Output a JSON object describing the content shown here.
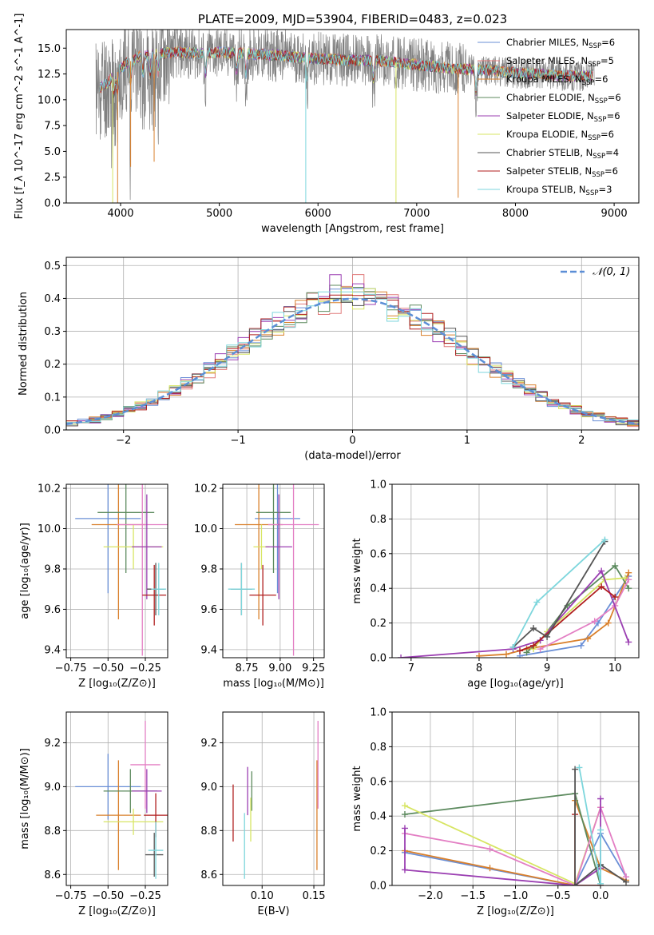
{
  "colors": {
    "Chabrier MILES": "#6a8fd6",
    "Salpeter MILES": "#e07b7b",
    "Kroupa MILES": "#d9802c",
    "Chabrier ELODIE": "#5c8a5e",
    "Salpeter ELODIE": "#9b3fb2",
    "Kroupa ELODIE": "#d7e563",
    "Chabrier STELIB": "#555555",
    "Salpeter STELIB": "#b01e1e",
    "Kroupa STELIB": "#7dd6dc",
    "pink": "#e37fc4",
    "normal": "#5b8ed6",
    "grid": "#b0b0b0"
  },
  "chart_data": [
    {
      "type": "line",
      "title": "PLATE=2009, MJD=53904, FIBERID=0483, z=0.023",
      "xlabel": "wavelength [Angstrom, rest frame]",
      "ylabel": "Flux [f_λ 10^-17 erg cm^-2 s^-1 A^-1]",
      "xlim": [
        3450,
        9250
      ],
      "ylim": [
        0,
        16.8
      ],
      "xticks": [
        4000,
        5000,
        6000,
        7000,
        8000,
        9000
      ],
      "yticks": [
        0.0,
        2.5,
        5.0,
        7.5,
        10.0,
        12.5,
        15.0
      ],
      "legend_position": "top-right",
      "grid": false,
      "data_range": [
        3750,
        8800
      ],
      "continuum": {
        "x": [
          3750,
          3850,
          3950,
          4050,
          4200,
          4400,
          4600,
          4800,
          5000,
          5200,
          5400,
          5600,
          5800,
          6000,
          6200,
          6400,
          6600,
          6800,
          7000,
          7200,
          7400,
          7600,
          7800,
          8000,
          8200,
          8400,
          8600,
          8800
        ],
        "y": [
          11.0,
          11.5,
          12.5,
          13.5,
          14.2,
          14.5,
          14.6,
          14.5,
          14.6,
          14.5,
          14.4,
          14.3,
          14.1,
          14.0,
          13.9,
          13.8,
          13.8,
          13.6,
          13.4,
          13.2,
          13.0,
          12.9,
          12.8,
          12.6,
          12.5,
          12.4,
          12.3,
          12.3
        ]
      },
      "drops": [
        {
          "x": 3920,
          "y": 0.0,
          "series": "Kroupa ELODIE"
        },
        {
          "x": 3970,
          "y": 0.0,
          "series": "Kroupa MILES"
        },
        {
          "x": 4102,
          "y": 3.5,
          "series": "Kroupa MILES"
        },
        {
          "x": 4340,
          "y": 4.0,
          "series": "Kroupa MILES"
        },
        {
          "x": 5876,
          "y": 0.0,
          "series": "Kroupa STELIB"
        },
        {
          "x": 6790,
          "y": 0.0,
          "series": "Kroupa ELODIE"
        },
        {
          "x": 7420,
          "y": 0.5,
          "series": "Kroupa MILES"
        }
      ],
      "series": [
        {
          "name": "Chabrier MILES, N_SSP=6"
        },
        {
          "name": "Salpeter MILES, N_SSP=5"
        },
        {
          "name": "Kroupa MILES, N_SSP=6"
        },
        {
          "name": "Chabrier ELODIE, N_SSP=6"
        },
        {
          "name": "Salpeter ELODIE, N_SSP=6"
        },
        {
          "name": "Kroupa ELODIE, N_SSP=6"
        },
        {
          "name": "Chabrier STELIB, N_SSP=4"
        },
        {
          "name": "Salpeter STELIB, N_SSP=6"
        },
        {
          "name": "Kroupa STELIB, N_SSP=3"
        }
      ]
    },
    {
      "type": "area",
      "xlabel": "(data-model)/error",
      "ylabel": "Normed distribution",
      "xlim": [
        -2.5,
        2.5
      ],
      "ylim": [
        0,
        0.525
      ],
      "xticks": [
        -2,
        -1,
        0,
        1,
        2
      ],
      "yticks": [
        0.0,
        0.1,
        0.2,
        0.3,
        0.4,
        0.5
      ],
      "grid": true,
      "legend": "N(0,1)",
      "legend_position": "top-right",
      "bin_width": 0.1,
      "bin_start": -2.5,
      "histograms": [
        {
          "series": "Chabrier MILES",
          "peak": 0.43,
          "seed": 1
        },
        {
          "series": "Salpeter MILES",
          "peak": 0.5,
          "seed": 2
        },
        {
          "series": "Kroupa MILES",
          "peak": 0.42,
          "seed": 3
        },
        {
          "series": "Chabrier ELODIE",
          "peak": 0.44,
          "seed": 4
        },
        {
          "series": "Salpeter ELODIE",
          "peak": 0.5,
          "seed": 5
        },
        {
          "series": "Kroupa ELODIE",
          "peak": 0.48,
          "seed": 6
        },
        {
          "series": "Chabrier STELIB",
          "peak": 0.4,
          "seed": 7
        },
        {
          "series": "Salpeter STELIB",
          "peak": 0.41,
          "seed": 8
        },
        {
          "series": "Kroupa STELIB",
          "peak": 0.42,
          "seed": 9
        }
      ]
    },
    {
      "type": "scatter",
      "xlabel": "Z [log10(Z/Z⊙)]",
      "ylabel": "age  [log10(age/yr)]",
      "xlim": [
        -0.78,
        -0.1
      ],
      "ylim": [
        9.36,
        10.22
      ],
      "xticks": [
        -0.75,
        -0.5,
        -0.25
      ],
      "yticks": [
        9.4,
        9.6,
        9.8,
        10.0,
        10.2
      ],
      "grid": true,
      "errorbars": [
        {
          "series": "Chabrier MILES",
          "x": -0.5,
          "y": 10.05,
          "xerr": 0.22,
          "yerr": 0.37
        },
        {
          "series": "Kroupa MILES",
          "x": -0.43,
          "y": 10.02,
          "xerr": 0.18,
          "yerr": 0.47
        },
        {
          "series": "Chabrier ELODIE",
          "x": -0.38,
          "y": 10.08,
          "xerr": 0.19,
          "yerr": 0.3
        },
        {
          "series": "Kroupa ELODIE",
          "x": -0.33,
          "y": 9.91,
          "xerr": 0.2,
          "yerr": 0.11
        },
        {
          "series": "pink",
          "x": -0.27,
          "y": 10.02,
          "xerr": 0.17,
          "yerr": 0.65
        },
        {
          "series": "Salpeter ELODIE",
          "x": -0.24,
          "y": 9.91,
          "xerr": 0.1,
          "yerr": 0.26
        },
        {
          "series": "Salpeter STELIB",
          "x": -0.19,
          "y": 9.67,
          "xerr": 0.08,
          "yerr": 0.15
        },
        {
          "series": "Chabrier STELIB",
          "x": -0.18,
          "y": 9.7,
          "xerr": 0.06,
          "yerr": 0.13
        },
        {
          "series": "Kroupa STELIB",
          "x": -0.16,
          "y": 9.7,
          "xerr": 0.05,
          "yerr": 0.13
        }
      ]
    },
    {
      "type": "scatter",
      "xlabel": "mass [log10(M/M⊙)]",
      "ylabel": "",
      "xlim": [
        8.57,
        9.33
      ],
      "ylim": [
        9.36,
        10.22
      ],
      "xticks": [
        8.75,
        9.0,
        9.25
      ],
      "yticks": [
        9.4,
        9.6,
        9.8,
        10.0,
        10.2
      ],
      "grid": true,
      "errorbars": [
        {
          "series": "Chabrier MILES",
          "x": 8.98,
          "y": 10.05,
          "xerr": 0.17,
          "yerr": 0.37
        },
        {
          "series": "Kroupa MILES",
          "x": 8.84,
          "y": 10.02,
          "xerr": 0.18,
          "yerr": 0.47
        },
        {
          "series": "Chabrier ELODIE",
          "x": 8.95,
          "y": 10.08,
          "xerr": 0.13,
          "yerr": 0.3
        },
        {
          "series": "Kroupa ELODIE",
          "x": 8.86,
          "y": 9.91,
          "xerr": 0.06,
          "yerr": 0.11
        },
        {
          "series": "pink",
          "x": 9.1,
          "y": 10.02,
          "xerr": 0.19,
          "yerr": 0.65
        },
        {
          "series": "Salpeter ELODIE",
          "x": 8.99,
          "y": 9.91,
          "xerr": 0.1,
          "yerr": 0.26
        },
        {
          "series": "Salpeter STELIB",
          "x": 8.87,
          "y": 9.67,
          "xerr": 0.1,
          "yerr": 0.15
        },
        {
          "series": "Chabrier STELIB",
          "x": 8.71,
          "y": 9.7,
          "xerr": 0.08,
          "yerr": 0.13
        },
        {
          "series": "Kroupa STELIB",
          "x": 8.71,
          "y": 9.7,
          "xerr": 0.1,
          "yerr": 0.13
        }
      ]
    },
    {
      "type": "line",
      "xlabel": "age  [log10(age/yr)]",
      "ylabel": "mass weight",
      "xlim": [
        6.72,
        10.35
      ],
      "ylim": [
        0,
        1.0
      ],
      "xticks": [
        7,
        8,
        9,
        10
      ],
      "yticks": [
        0.0,
        0.2,
        0.4,
        0.6,
        0.8,
        1.0
      ],
      "grid": true,
      "series": [
        {
          "name": "Chabrier MILES",
          "x": [
            8.6,
            9.5,
            9.75,
            10.2
          ],
          "y": [
            0.01,
            0.07,
            0.2,
            0.47
          ]
        },
        {
          "name": "Kroupa MILES",
          "x": [
            8.0,
            8.4,
            8.7,
            9.6,
            9.9,
            10.2
          ],
          "y": [
            0.01,
            0.02,
            0.05,
            0.11,
            0.2,
            0.49
          ]
        },
        {
          "name": "Chabrier ELODIE",
          "x": [
            8.7,
            8.9,
            9.3,
            10.0,
            10.2
          ],
          "y": [
            0.03,
            0.1,
            0.3,
            0.53,
            0.4
          ]
        },
        {
          "name": "Kroupa ELODIE",
          "x": [
            8.8,
            9.0,
            9.85,
            10.15
          ],
          "y": [
            0.05,
            0.15,
            0.45,
            0.46
          ]
        },
        {
          "name": "pink",
          "x": [
            8.9,
            9.7,
            10.0,
            10.2
          ],
          "y": [
            0.05,
            0.21,
            0.3,
            0.45
          ]
        },
        {
          "name": "Salpeter ELODIE",
          "x": [
            6.85,
            8.5,
            8.9,
            9.8,
            10.2
          ],
          "y": [
            0.0,
            0.05,
            0.1,
            0.5,
            0.09
          ]
        },
        {
          "name": "Salpeter STELIB",
          "x": [
            8.6,
            8.8,
            9.8,
            10.0
          ],
          "y": [
            0.04,
            0.07,
            0.41,
            0.35
          ]
        },
        {
          "name": "Chabrier STELIB",
          "x": [
            8.5,
            8.8,
            9.0,
            9.85
          ],
          "y": [
            0.06,
            0.17,
            0.12,
            0.67
          ]
        },
        {
          "name": "Kroupa STELIB",
          "x": [
            8.5,
            8.85,
            9.85
          ],
          "y": [
            0.06,
            0.32,
            0.68
          ]
        }
      ]
    },
    {
      "type": "scatter",
      "xlabel": "Z [log10(Z/Z⊙)]",
      "ylabel": "mass [log10(M/M⊙)]",
      "xlim": [
        -0.78,
        -0.1
      ],
      "ylim": [
        8.55,
        9.34
      ],
      "xticks": [
        -0.75,
        -0.5,
        -0.25
      ],
      "yticks": [
        8.6,
        8.8,
        9.0,
        9.2
      ],
      "grid": true,
      "errorbars": [
        {
          "series": "Chabrier MILES",
          "x": -0.5,
          "y": 9.0,
          "xerr": 0.22,
          "yerr": 0.15
        },
        {
          "series": "Kroupa MILES",
          "x": -0.43,
          "y": 8.87,
          "xerr": 0.15,
          "yerr": 0.25
        },
        {
          "series": "Chabrier ELODIE",
          "x": -0.35,
          "y": 8.98,
          "xerr": 0.18,
          "yerr": 0.1
        },
        {
          "series": "Kroupa ELODIE",
          "x": -0.33,
          "y": 8.84,
          "xerr": 0.2,
          "yerr": 0.06
        },
        {
          "series": "pink",
          "x": -0.25,
          "y": 9.1,
          "xerr": 0.1,
          "yerr": 0.2
        },
        {
          "series": "Salpeter ELODIE",
          "x": -0.24,
          "y": 8.98,
          "xerr": 0.1,
          "yerr": 0.1
        },
        {
          "series": "Salpeter STELIB",
          "x": -0.18,
          "y": 8.87,
          "xerr": 0.08,
          "yerr": 0.1
        },
        {
          "series": "Chabrier STELIB",
          "x": -0.19,
          "y": 8.69,
          "xerr": 0.06,
          "yerr": 0.1
        },
        {
          "series": "Kroupa STELIB",
          "x": -0.18,
          "y": 8.71,
          "xerr": 0.05,
          "yerr": 0.13
        }
      ]
    },
    {
      "type": "scatter",
      "xlabel": "E(B-V)",
      "ylabel": "",
      "xlim": [
        0.062,
        0.16
      ],
      "ylim": [
        8.55,
        9.34
      ],
      "xticks": [
        0.1,
        0.15
      ],
      "yticks": [
        8.6,
        8.8,
        9.0,
        9.2
      ],
      "grid": true,
      "errorbars": [
        {
          "series": "Salpeter STELIB",
          "x": 0.072,
          "y": 8.88,
          "xerr": 0,
          "yerr": 0.13
        },
        {
          "series": "Kroupa STELIB",
          "x": 0.083,
          "y": 8.73,
          "xerr": 0,
          "yerr": 0.15
        },
        {
          "series": "Salpeter ELODIE",
          "x": 0.086,
          "y": 8.98,
          "xerr": 0,
          "yerr": 0.11
        },
        {
          "series": "Chabrier ELODIE",
          "x": 0.09,
          "y": 8.98,
          "xerr": 0,
          "yerr": 0.09
        },
        {
          "series": "Kroupa ELODIE",
          "x": 0.089,
          "y": 8.85,
          "xerr": 0,
          "yerr": 0.1
        },
        {
          "series": "Kroupa MILES",
          "x": 0.153,
          "y": 8.87,
          "xerr": 0,
          "yerr": 0.25
        },
        {
          "series": "pink",
          "x": 0.154,
          "y": 9.1,
          "xerr": 0,
          "yerr": 0.2
        }
      ]
    },
    {
      "type": "line",
      "xlabel": "Z [log10(Z/Z⊙)]",
      "ylabel": "mass weight",
      "xlim": [
        -2.45,
        0.45
      ],
      "ylim": [
        0,
        1.0
      ],
      "xticks": [
        -2.0,
        -1.5,
        -1.0,
        -0.5,
        0.0
      ],
      "yticks": [
        0.0,
        0.2,
        0.4,
        0.6,
        0.8,
        1.0
      ],
      "grid": true,
      "series": [
        {
          "name": "Chabrier MILES",
          "x": [
            -2.3,
            -0.3,
            0.0,
            0.3
          ],
          "y": [
            0.19,
            0.0,
            0.3,
            0.05
          ]
        },
        {
          "name": "Kroupa MILES",
          "x": [
            -2.3,
            -1.3,
            -0.3,
            -0.3,
            0.0,
            0.3
          ],
          "y": [
            0.2,
            0.1,
            0.0,
            0.49,
            0.1,
            0.03
          ]
        },
        {
          "name": "Chabrier ELODIE",
          "x": [
            -2.3,
            -0.3,
            0.0
          ],
          "y": [
            0.41,
            0.53,
            0.0
          ]
        },
        {
          "name": "Kroupa ELODIE",
          "x": [
            -2.3,
            -0.3,
            0.0
          ],
          "y": [
            0.46,
            0.01,
            0.45
          ]
        },
        {
          "name": "pink",
          "x": [
            -2.3,
            -1.3,
            -0.3,
            0.0,
            0.3
          ],
          "y": [
            0.3,
            0.21,
            0.0,
            0.45,
            0.05
          ]
        },
        {
          "name": "Salpeter ELODIE",
          "x": [
            -2.3,
            -2.3,
            -0.3,
            0.0,
            0.0
          ],
          "y": [
            0.33,
            0.09,
            0.0,
            0.1,
            0.5
          ]
        },
        {
          "name": "Salpeter STELIB",
          "x": [
            -0.3,
            -0.3,
            0.0
          ],
          "y": [
            0.41,
            0.0,
            0.0
          ]
        },
        {
          "name": "Chabrier STELIB",
          "x": [
            -0.3,
            -0.3,
            0.0,
            0.3
          ],
          "y": [
            0.67,
            0.0,
            0.12,
            0.02
          ]
        },
        {
          "name": "Kroupa STELIB",
          "x": [
            -0.25,
            0.0,
            0.0
          ],
          "y": [
            0.68,
            0.01,
            0.32
          ]
        }
      ]
    }
  ]
}
